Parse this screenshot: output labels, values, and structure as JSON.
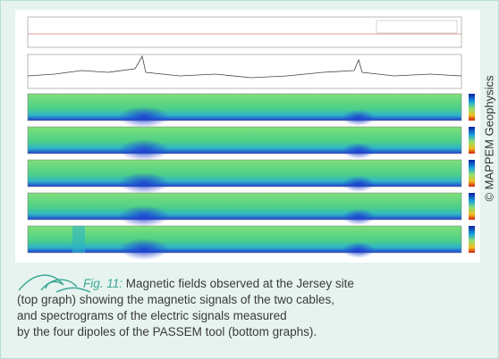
{
  "figure": {
    "credit": "© MAPPEM Geophysics"
  },
  "caption": {
    "label": "Fig. 11:",
    "lines": [
      "Magnetic fields observed at the Jersey site",
      "(top graph) showing the magnetic signals of the two cables,",
      "and spectrograms of the electric signals measured",
      "by the four dipoles of the PASSEM tool (bottom graphs)."
    ]
  }
}
